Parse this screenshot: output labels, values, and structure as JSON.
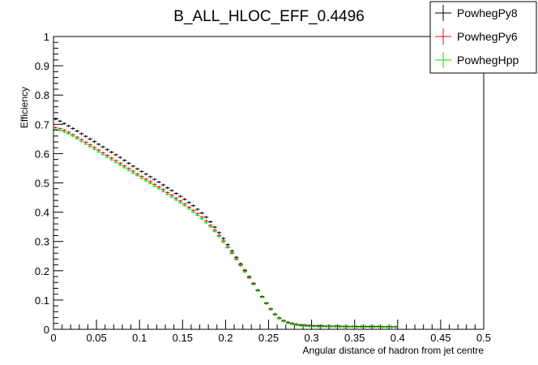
{
  "chart_data": {
    "type": "scatter",
    "title": "B_ALL_HLOC_EFF_0.4496",
    "xlabel": "Angular distance of hadron from jet centre",
    "ylabel": "Efficiency",
    "xlim": [
      0,
      0.5
    ],
    "ylim": [
      0,
      1
    ],
    "x_ticks": [
      "0",
      "0.05",
      "0.1",
      "0.15",
      "0.2",
      "0.25",
      "0.3",
      "0.35",
      "0.4",
      "0.45",
      "0.5"
    ],
    "y_ticks": [
      "0",
      "0.1",
      "0.2",
      "0.3",
      "0.4",
      "0.5",
      "0.6",
      "0.7",
      "0.8",
      "0.9",
      "1"
    ],
    "legend_position": "top-right",
    "bin_width": 0.005,
    "x": [
      0.0025,
      0.0075,
      0.0125,
      0.0175,
      0.0225,
      0.0275,
      0.0325,
      0.0375,
      0.0425,
      0.0475,
      0.0525,
      0.0575,
      0.0625,
      0.0675,
      0.0725,
      0.0775,
      0.0825,
      0.0875,
      0.0925,
      0.0975,
      0.1025,
      0.1075,
      0.1125,
      0.1175,
      0.1225,
      0.1275,
      0.1325,
      0.1375,
      0.1425,
      0.1475,
      0.1525,
      0.1575,
      0.1625,
      0.1675,
      0.1725,
      0.1775,
      0.1825,
      0.1875,
      0.1925,
      0.1975,
      0.2025,
      0.2075,
      0.2125,
      0.2175,
      0.2225,
      0.2275,
      0.2325,
      0.2375,
      0.2425,
      0.2475,
      0.2525,
      0.2575,
      0.2625,
      0.2675,
      0.2725,
      0.2775,
      0.2825,
      0.2875,
      0.2925,
      0.2975,
      0.3025,
      0.3075,
      0.3125,
      0.3175,
      0.3225,
      0.3275,
      0.3325,
      0.3375,
      0.3425,
      0.3475,
      0.3525,
      0.3575,
      0.3625,
      0.3675,
      0.3725,
      0.3775,
      0.3825,
      0.3875,
      0.3925,
      0.3975
    ],
    "series": [
      {
        "name": "PowhegPy8",
        "color": "#000000",
        "values": [
          0.718,
          0.711,
          0.703,
          0.695,
          0.686,
          0.677,
          0.668,
          0.659,
          0.65,
          0.641,
          0.632,
          0.623,
          0.614,
          0.605,
          0.596,
          0.587,
          0.577,
          0.567,
          0.557,
          0.548,
          0.539,
          0.53,
          0.521,
          0.512,
          0.503,
          0.493,
          0.483,
          0.474,
          0.464,
          0.454,
          0.444,
          0.433,
          0.422,
          0.41,
          0.397,
          0.383,
          0.367,
          0.349,
          0.33,
          0.31,
          0.289,
          0.268,
          0.246,
          0.224,
          0.202,
          0.18,
          0.157,
          0.134,
          0.112,
          0.09,
          0.07,
          0.052,
          0.039,
          0.03,
          0.024,
          0.02,
          0.017,
          0.015,
          0.014,
          0.013,
          0.012,
          0.012,
          0.012,
          0.011,
          0.011,
          0.011,
          0.011,
          0.01,
          0.01,
          0.01,
          0.01,
          0.01,
          0.01,
          0.01,
          0.01,
          0.01,
          0.009,
          0.009,
          0.009,
          0.009
        ]
      },
      {
        "name": "PowhegPy6",
        "color": "#ff0000",
        "values": [
          0.689,
          0.685,
          0.68,
          0.673,
          0.665,
          0.656,
          0.648,
          0.639,
          0.63,
          0.621,
          0.612,
          0.603,
          0.594,
          0.585,
          0.576,
          0.567,
          0.558,
          0.549,
          0.54,
          0.531,
          0.522,
          0.513,
          0.504,
          0.495,
          0.486,
          0.477,
          0.467,
          0.458,
          0.448,
          0.438,
          0.428,
          0.417,
          0.406,
          0.395,
          0.383,
          0.37,
          0.355,
          0.339,
          0.321,
          0.302,
          0.282,
          0.262,
          0.241,
          0.22,
          0.199,
          0.177,
          0.155,
          0.132,
          0.11,
          0.088,
          0.068,
          0.05,
          0.037,
          0.028,
          0.022,
          0.018,
          0.015,
          0.013,
          0.012,
          0.011,
          0.01,
          0.01,
          0.01,
          0.01,
          0.009,
          0.009,
          0.009,
          0.009,
          0.009,
          0.009,
          0.008,
          0.008,
          0.008,
          0.008,
          0.008,
          0.008,
          0.008,
          0.008,
          0.008,
          0.008
        ]
      },
      {
        "name": "PowhegHpp",
        "color": "#00dd00",
        "values": [
          0.683,
          0.679,
          0.674,
          0.668,
          0.66,
          0.651,
          0.642,
          0.633,
          0.624,
          0.615,
          0.606,
          0.597,
          0.588,
          0.579,
          0.57,
          0.561,
          0.552,
          0.543,
          0.534,
          0.525,
          0.516,
          0.507,
          0.498,
          0.489,
          0.48,
          0.471,
          0.461,
          0.452,
          0.442,
          0.432,
          0.422,
          0.411,
          0.4,
          0.389,
          0.377,
          0.364,
          0.35,
          0.334,
          0.317,
          0.298,
          0.279,
          0.259,
          0.238,
          0.217,
          0.196,
          0.175,
          0.153,
          0.131,
          0.109,
          0.087,
          0.067,
          0.049,
          0.036,
          0.027,
          0.021,
          0.017,
          0.014,
          0.012,
          0.011,
          0.01,
          0.01,
          0.009,
          0.009,
          0.009,
          0.009,
          0.009,
          0.008,
          0.008,
          0.008,
          0.008,
          0.008,
          0.008,
          0.008,
          0.008,
          0.008,
          0.008,
          0.007,
          0.007,
          0.007,
          0.007
        ]
      }
    ]
  }
}
